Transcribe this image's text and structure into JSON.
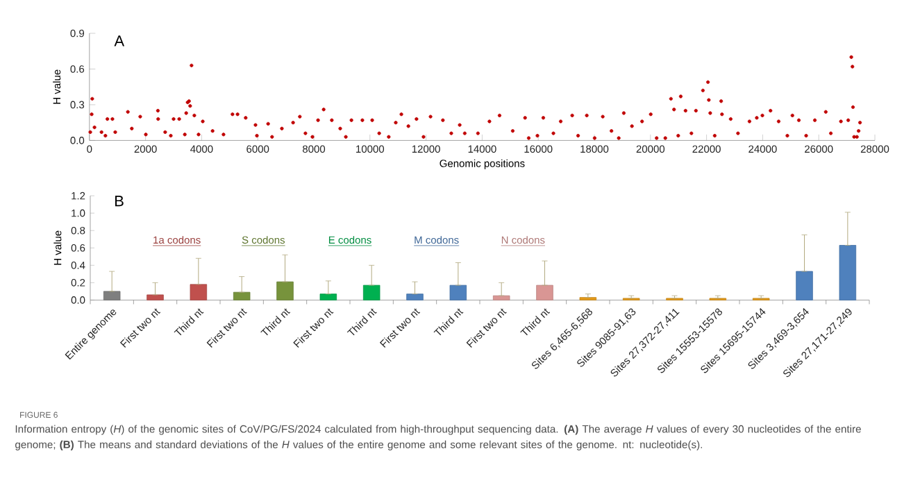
{
  "chart_data": [
    {
      "type": "scatter",
      "xlabel": "Genomic positions",
      "ylabel": "H value",
      "color": "#c00000",
      "marker": "circle",
      "x": [
        30,
        80,
        100,
        180,
        430,
        570,
        640,
        820,
        920,
        1370,
        1510,
        1810,
        2010,
        2440,
        2450,
        2700,
        2900,
        3000,
        3200,
        3400,
        3450,
        3500,
        3550,
        3590,
        3640,
        3740,
        3890,
        4040,
        4390,
        4780,
        5100,
        5280,
        5570,
        5920,
        5970,
        6370,
        6510,
        6860,
        7260,
        7500,
        7700,
        7950,
        8150,
        8350,
        8640,
        8940,
        9140,
        9340,
        9730,
        10080,
        10330,
        10670,
        10920,
        11120,
        11370,
        11660,
        11910,
        12160,
        12600,
        12900,
        13200,
        13380,
        13850,
        14260,
        14620,
        15090,
        15530,
        15660,
        15970,
        16180,
        16540,
        16800,
        17210,
        17420,
        17730,
        18010,
        18300,
        18610,
        18870,
        19050,
        19340,
        19700,
        20010,
        20220,
        20530,
        20730,
        20840,
        20990,
        21080,
        21250,
        21460,
        21620,
        21870,
        22050,
        22080,
        22130,
        22290,
        22520,
        22550,
        22860,
        23120,
        23530,
        23790,
        23990,
        24280,
        24570,
        24880,
        25060,
        25290,
        25550,
        25860,
        26250,
        26430,
        26790,
        27050,
        27160,
        27200,
        27220,
        27260,
        27360,
        27420,
        27470
      ],
      "values": [
        0.07,
        0.22,
        0.35,
        0.11,
        0.07,
        0.04,
        0.18,
        0.18,
        0.07,
        0.24,
        0.1,
        0.2,
        0.05,
        0.25,
        0.18,
        0.07,
        0.04,
        0.18,
        0.18,
        0.05,
        0.23,
        0.32,
        0.33,
        0.29,
        0.63,
        0.21,
        0.05,
        0.16,
        0.08,
        0.05,
        0.22,
        0.22,
        0.19,
        0.13,
        0.04,
        0.14,
        0.03,
        0.1,
        0.15,
        0.2,
        0.06,
        0.03,
        0.17,
        0.26,
        0.17,
        0.1,
        0.03,
        0.17,
        0.17,
        0.17,
        0.06,
        0.03,
        0.15,
        0.22,
        0.12,
        0.18,
        0.03,
        0.2,
        0.17,
        0.06,
        0.13,
        0.06,
        0.06,
        0.16,
        0.21,
        0.08,
        0.19,
        0.02,
        0.04,
        0.19,
        0.06,
        0.16,
        0.21,
        0.04,
        0.21,
        0.02,
        0.2,
        0.08,
        0.02,
        0.23,
        0.12,
        0.16,
        0.22,
        0.02,
        0.02,
        0.35,
        0.26,
        0.04,
        0.37,
        0.25,
        0.06,
        0.25,
        0.42,
        0.49,
        0.34,
        0.23,
        0.04,
        0.33,
        0.22,
        0.18,
        0.06,
        0.16,
        0.19,
        0.21,
        0.25,
        0.16,
        0.04,
        0.21,
        0.17,
        0.04,
        0.17,
        0.24,
        0.06,
        0.16,
        0.17,
        0.7,
        0.62,
        0.28,
        0.03,
        0.03,
        0.08,
        0.15
      ],
      "xlim": [
        0,
        28000
      ],
      "xticks": [
        0,
        2000,
        4000,
        6000,
        8000,
        10000,
        12000,
        14000,
        16000,
        18000,
        20000,
        22000,
        24000,
        26000,
        28000
      ],
      "ylim": [
        0,
        0.9
      ],
      "yticks": [
        {
          "value": 0,
          "label": "0.0"
        },
        {
          "value": 0.3,
          "label": "0.3"
        },
        {
          "value": 0.6,
          "label": "0.6"
        },
        {
          "value": 0.9,
          "label": "0.9"
        }
      ],
      "annotations": [
        "A"
      ]
    },
    {
      "type": "bar",
      "ylabel": "H value",
      "categories": [
        "Entire genome",
        "First two nt",
        "Third nt",
        "First two nt",
        "Third nt",
        "First two nt",
        "Third nt",
        "First two nt",
        "Third nt",
        "First two nt",
        "Third nt",
        "Sites 6,465-6,568",
        "Sites 9085-91,63",
        "Sites 27,372-27,411",
        "Sites 15553-15578",
        "Sites 15695-15744",
        "Sites 3,469-3,654",
        "Sites 27,171-27,249"
      ],
      "values": [
        0.1,
        0.06,
        0.18,
        0.09,
        0.21,
        0.07,
        0.17,
        0.07,
        0.17,
        0.05,
        0.17,
        0.03,
        0.02,
        0.02,
        0.02,
        0.02,
        0.33,
        0.63
      ],
      "colors": [
        "#7f7f7f",
        "#c0504d",
        "#c0504d",
        "#77933c",
        "#77933c",
        "#00b050",
        "#00b050",
        "#4f81bd",
        "#4f81bd",
        "#d99694",
        "#d99694",
        "#e39a1b",
        "#e39a1b",
        "#e39a1b",
        "#e39a1b",
        "#e39a1b",
        "#4f81bd",
        "#4f81bd"
      ],
      "errors": [
        [
          0.1,
          0.33
        ],
        [
          0.06,
          0.2
        ],
        [
          0.18,
          0.48
        ],
        [
          0.09,
          0.27
        ],
        [
          0.21,
          0.52
        ],
        [
          0.07,
          0.22
        ],
        [
          0.17,
          0.4
        ],
        [
          0.07,
          0.21
        ],
        [
          0.17,
          0.43
        ],
        [
          0.05,
          0.2
        ],
        [
          0.17,
          0.45
        ],
        [
          0.03,
          0.07
        ],
        [
          0.02,
          0.05
        ],
        [
          0.02,
          0.05
        ],
        [
          0.02,
          0.05
        ],
        [
          0.02,
          0.05
        ],
        [
          0.33,
          0.75
        ],
        [
          0.63,
          1.01
        ]
      ],
      "ylim": [
        0,
        1.2
      ],
      "yticks": [
        {
          "value": 0,
          "label": "0.0"
        },
        {
          "value": 0.2,
          "label": "0.2"
        },
        {
          "value": 0.4,
          "label": "0.4"
        },
        {
          "value": 0.6,
          "label": "0.6"
        },
        {
          "value": 0.8,
          "label": "0.8"
        },
        {
          "value": 1.0,
          "label": "1.0"
        },
        {
          "value": 1.2,
          "label": "1.2"
        }
      ],
      "annotations": [
        "B",
        "1a codons",
        "S codons",
        "E codons",
        "M codons",
        "N codons",
        "FIGURE 6",
        "Information entropy (*H*) of the genomic sites of CoV/PG/FS/2024 calculated from high-throughput sequencing data. **(A)** The average *H* values of every 30 nucleotides of the entire genome; **(B)** The means and standard deviations of the *H* values of the entire genome and some relevant sites of the genome. nt: nucleotide(s)."
      ]
    }
  ]
}
